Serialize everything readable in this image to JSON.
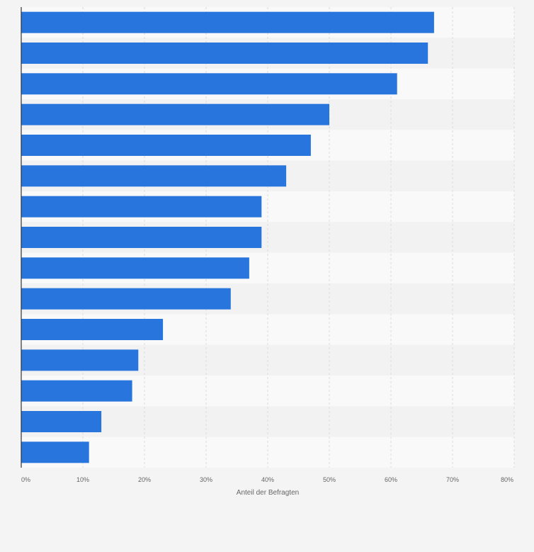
{
  "chart_data": {
    "type": "bar",
    "orientation": "horizontal",
    "categories": [
      "",
      "",
      "",
      "",
      "",
      "",
      "",
      "",
      "",
      "",
      "",
      "",
      "",
      "",
      ""
    ],
    "values": [
      67,
      66,
      61,
      50,
      47,
      43,
      39,
      39,
      37,
      34,
      23,
      19,
      18,
      13,
      11
    ],
    "xlim": [
      0,
      80
    ],
    "xticks": [
      0,
      10,
      20,
      30,
      40,
      50,
      60,
      70,
      80
    ],
    "xtick_labels": [
      "0%",
      "10%",
      "20%",
      "30%",
      "40%",
      "50%",
      "60%",
      "70%",
      "80%"
    ],
    "xlabel": "Anteil der Befragten",
    "ylabel": "",
    "title": "",
    "grid": true,
    "colors": {
      "bar": "#2876dd",
      "band_light": "#f9f9f9",
      "band_dark": "#f2f2f2",
      "gridline": "#dcdcdc",
      "axis": "#333333",
      "text": "#666666"
    }
  }
}
